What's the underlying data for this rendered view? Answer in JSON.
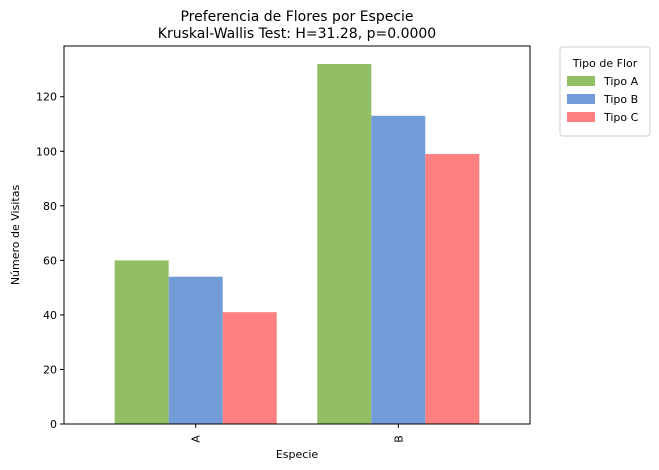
{
  "chart_data": {
    "type": "bar",
    "title": "Preferencia de Flores por Especie",
    "subtitle": "Kruskal-Wallis Test: H=31.28, p=0.0000",
    "xlabel": "Especie",
    "ylabel": "Número de Visitas",
    "categories": [
      "A",
      "B"
    ],
    "series": [
      {
        "name": "Tipo A",
        "color": "#92bf66",
        "values": [
          60,
          132
        ]
      },
      {
        "name": "Tipo B",
        "color": "#729cd7",
        "values": [
          54,
          113
        ]
      },
      {
        "name": "Tipo C",
        "color": "#ff8080",
        "values": [
          41,
          99
        ]
      }
    ],
    "ylim": [
      0,
      138.6
    ],
    "yticks": [
      0,
      20,
      40,
      60,
      80,
      100,
      120
    ],
    "grid": false,
    "legend": {
      "title": "Tipo de Flor",
      "placement": "outside-top-right"
    }
  }
}
